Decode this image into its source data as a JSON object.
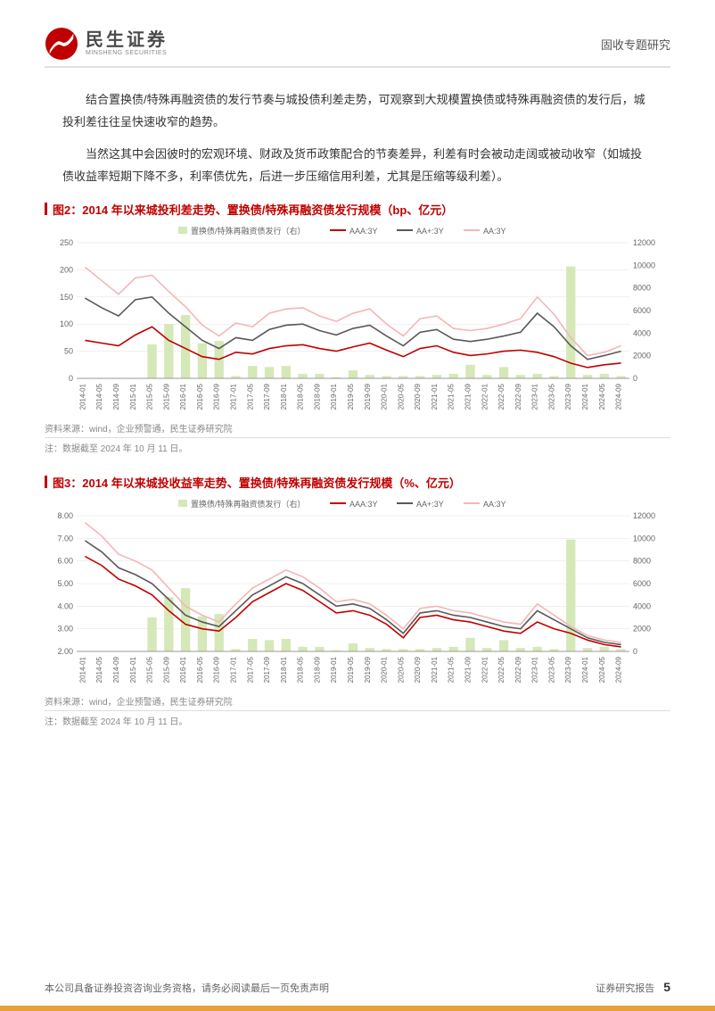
{
  "header": {
    "logo_cn": "民生证券",
    "logo_en": "MINSHENG SECURITIES",
    "right": "固收专题研究"
  },
  "paragraphs": [
    "结合置换债/特殊再融资债的发行节奏与城投债利差走势，可观察到大规模置换债或特殊再融资债的发行后，城投利差往往呈快速收窄的趋势。",
    "当然这其中会因彼时的宏观环境、财政及货币政策配合的节奏差异，利差有时会被动走阔或被动收窄（如城投债收益率短期下降不多，利率债优先，后进一步压缩信用利差，尤其是压缩等级利差）。"
  ],
  "chart_common": {
    "categories": [
      "2014-01",
      "2014-05",
      "2014-09",
      "2015-01",
      "2015-05",
      "2015-09",
      "2016-01",
      "2016-05",
      "2016-09",
      "2017-01",
      "2017-05",
      "2017-09",
      "2018-01",
      "2018-05",
      "2018-09",
      "2019-01",
      "2019-05",
      "2019-09",
      "2020-01",
      "2020-05",
      "2020-09",
      "2021-01",
      "2021-05",
      "2021-09",
      "2022-01",
      "2022-05",
      "2022-09",
      "2023-01",
      "2023-05",
      "2023-09",
      "2024-01",
      "2024-05",
      "2024-09"
    ],
    "bars_color": "#d5e8b8",
    "line_colors": {
      "AAA": "#c00000",
      "AA_plus": "#595959",
      "AA": "#f4b6b6"
    },
    "legend_labels": [
      "置换债/特殊再融资债发行（右）",
      "AAA:3Y",
      "AA+:3Y",
      "AA:3Y"
    ],
    "y2_lim": [
      0,
      12000
    ],
    "y2_step": 2000,
    "bars": [
      0,
      0,
      0,
      0,
      3000,
      4800,
      5600,
      3100,
      3300,
      200,
      1100,
      1000,
      1100,
      400,
      400,
      100,
      700,
      300,
      200,
      200,
      200,
      300,
      400,
      1200,
      300,
      1000,
      300,
      400,
      200,
      9900,
      300,
      400,
      200
    ],
    "grid_color": "#e0e0e0",
    "axis_color": "#999999",
    "background": "#ffffff",
    "label_fontsize": 9
  },
  "chart2": {
    "title": "图2：2014 年以来城投利差走势、置换债/特殊再融资债发行规模（bp、亿元）",
    "y1_lim": [
      0,
      250
    ],
    "y1_step": 50,
    "series": {
      "AAA": [
        70,
        65,
        60,
        80,
        95,
        70,
        55,
        40,
        35,
        48,
        45,
        55,
        60,
        62,
        55,
        50,
        58,
        65,
        52,
        40,
        55,
        60,
        48,
        42,
        45,
        50,
        52,
        48,
        40,
        28,
        20,
        25,
        28
      ],
      "AA_plus": [
        148,
        130,
        115,
        145,
        150,
        120,
        95,
        70,
        55,
        75,
        70,
        90,
        98,
        100,
        88,
        80,
        92,
        98,
        78,
        60,
        85,
        90,
        72,
        68,
        72,
        78,
        85,
        120,
        95,
        60,
        35,
        42,
        50
      ],
      "AA": [
        205,
        180,
        155,
        185,
        190,
        160,
        132,
        98,
        78,
        102,
        95,
        120,
        128,
        130,
        115,
        105,
        120,
        128,
        100,
        78,
        110,
        115,
        92,
        88,
        92,
        100,
        110,
        150,
        118,
        75,
        42,
        48,
        60
      ]
    },
    "source": "资料来源：wind，企业预警通，民生证券研究院",
    "note": "注：数据截至 2024 年 10 月 11 日。"
  },
  "chart3": {
    "title": "图3：2014 年以来城投收益率走势、置换债/特殊再融资债发行规模（%、亿元）",
    "y1_lim": [
      0,
      8
    ],
    "y1_major": [
      2,
      3,
      4,
      5,
      6,
      7,
      8
    ],
    "series": {
      "AAA": [
        6.2,
        5.8,
        5.2,
        4.9,
        4.5,
        3.8,
        3.2,
        3.0,
        2.9,
        3.5,
        4.2,
        4.6,
        5.0,
        4.7,
        4.2,
        3.7,
        3.8,
        3.6,
        3.2,
        2.6,
        3.5,
        3.6,
        3.4,
        3.3,
        3.1,
        2.9,
        2.8,
        3.3,
        3.0,
        2.8,
        2.5,
        2.3,
        2.2
      ],
      "AA_plus": [
        6.9,
        6.4,
        5.7,
        5.4,
        5.0,
        4.3,
        3.6,
        3.3,
        3.1,
        3.8,
        4.5,
        4.9,
        5.3,
        5.0,
        4.5,
        4.0,
        4.1,
        3.9,
        3.4,
        2.8,
        3.7,
        3.8,
        3.6,
        3.5,
        3.3,
        3.1,
        3.0,
        3.8,
        3.4,
        3.0,
        2.6,
        2.4,
        2.3
      ],
      "AA": [
        7.7,
        7.1,
        6.3,
        6.0,
        5.6,
        4.8,
        4.0,
        3.6,
        3.3,
        4.1,
        4.8,
        5.2,
        5.6,
        5.3,
        4.8,
        4.2,
        4.3,
        4.1,
        3.6,
        3.0,
        3.9,
        4.0,
        3.8,
        3.7,
        3.5,
        3.3,
        3.2,
        4.1,
        3.6,
        3.1,
        2.7,
        2.5,
        2.4
      ]
    },
    "source": "资料来源：wind，企业预警通，民生证券研究院",
    "note": "注：数据截至 2024 年 10 月 11 日。"
  },
  "footer": {
    "left": "本公司具备证券投资咨询业务资格，请务必阅读最后一页免责声明",
    "right": "证券研究报告",
    "page": "5"
  },
  "colors": {
    "brand_red": "#c00000",
    "stripe": "#e8a03a"
  }
}
